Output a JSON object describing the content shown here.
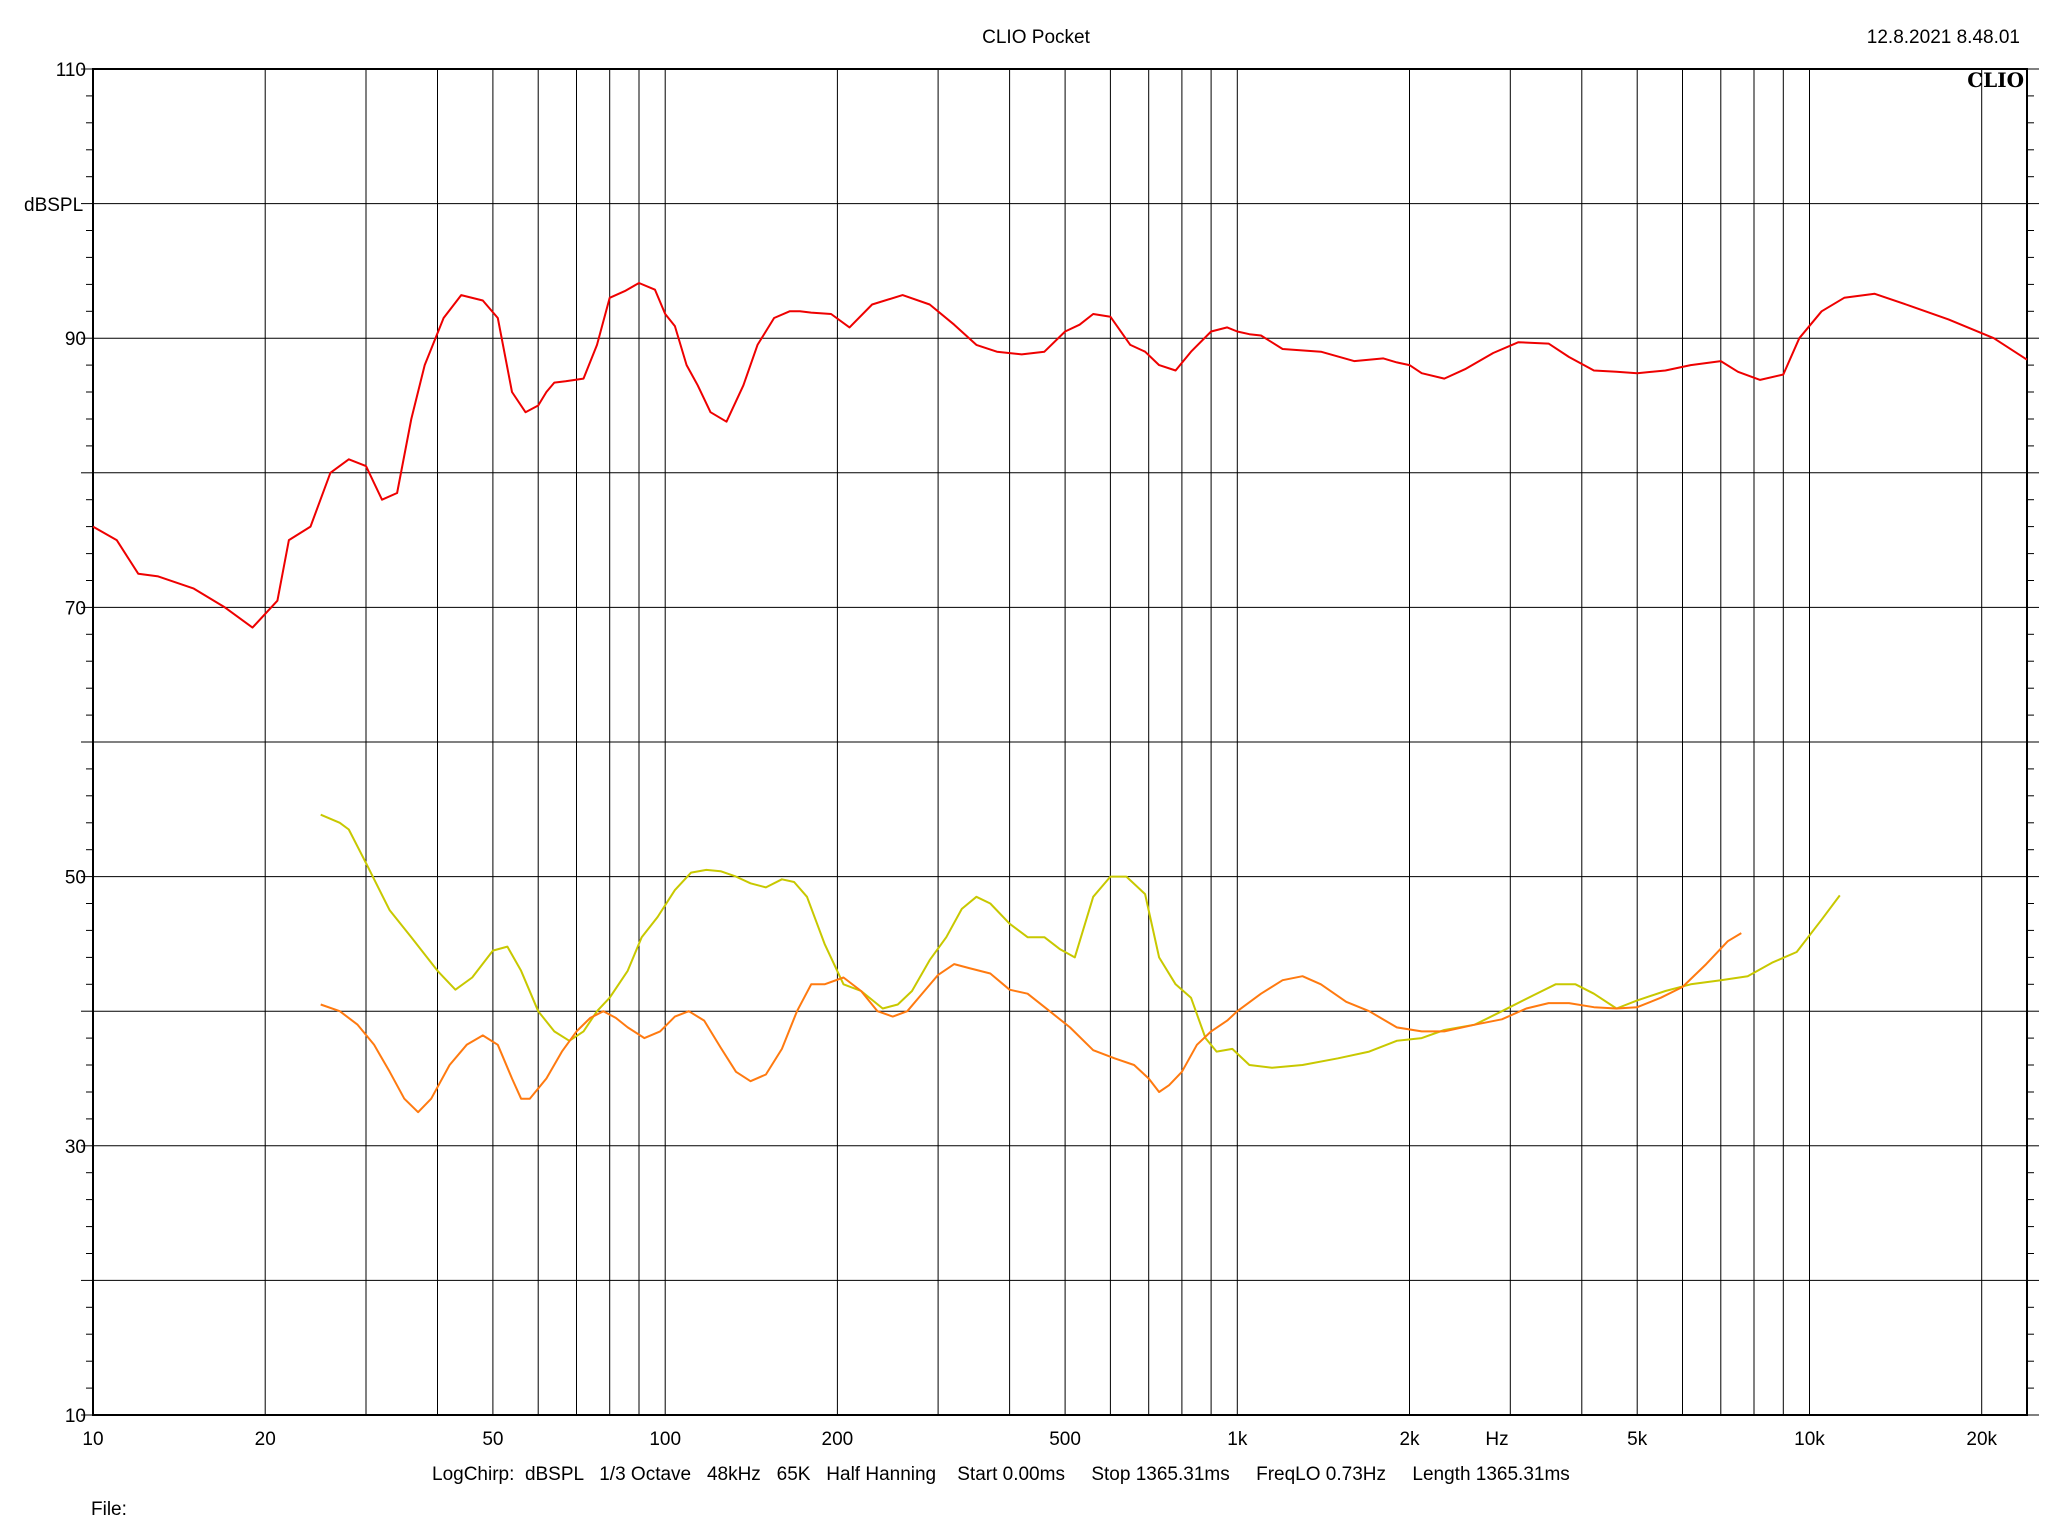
{
  "header": {
    "title": "CLIO Pocket",
    "timestamp": "12.8.2021 8.48.01",
    "brand": "CLIO"
  },
  "footer": {
    "settings": "LogChirp:  dBSPL   1/3 Octave   48kHz   65K   Half Hanning    Start 0.00ms     Stop 1365.31ms     FreqLO 0.73Hz     Length 1365.31ms",
    "file_label": "File:"
  },
  "chart_data": {
    "type": "line",
    "x_scale": "log",
    "xlim": [
      10,
      24000
    ],
    "ylim": [
      10,
      110
    ],
    "xlabel": "Hz",
    "ylabel": "dBSPL",
    "grid": true,
    "x_ticks": [
      {
        "value": 10,
        "label": "10"
      },
      {
        "value": 20,
        "label": "20"
      },
      {
        "value": 50,
        "label": "50"
      },
      {
        "value": 100,
        "label": "100"
      },
      {
        "value": 200,
        "label": "200"
      },
      {
        "value": 500,
        "label": "500"
      },
      {
        "value": 1000,
        "label": "1k"
      },
      {
        "value": 2000,
        "label": "2k"
      },
      {
        "value": 5000,
        "label": "5k"
      },
      {
        "value": 10000,
        "label": "10k"
      },
      {
        "value": 20000,
        "label": "20k"
      }
    ],
    "x_gridlines": [
      10,
      20,
      30,
      40,
      50,
      60,
      70,
      80,
      90,
      100,
      200,
      300,
      400,
      500,
      600,
      700,
      800,
      900,
      1000,
      2000,
      3000,
      4000,
      5000,
      6000,
      7000,
      8000,
      9000,
      10000,
      20000
    ],
    "y_ticks": [
      {
        "value": 10,
        "label": "10"
      },
      {
        "value": 30,
        "label": "30"
      },
      {
        "value": 50,
        "label": "50"
      },
      {
        "value": 70,
        "label": "70"
      },
      {
        "value": 90,
        "label": "90"
      },
      {
        "value": 110,
        "label": "110"
      }
    ],
    "y_gridlines": [
      10,
      20,
      30,
      40,
      50,
      60,
      70,
      80,
      90,
      100,
      110
    ],
    "series": [
      {
        "color": "#ee0000",
        "x": [
          10,
          11,
          12,
          13,
          15,
          17,
          19,
          21,
          22,
          24,
          26,
          28,
          30,
          32,
          34,
          36,
          38,
          41,
          44,
          48,
          51,
          54,
          57,
          60,
          62,
          64,
          67,
          72,
          76,
          80,
          85,
          90,
          96,
          100,
          104,
          109,
          114,
          120,
          128,
          137,
          145,
          155,
          165,
          172,
          180,
          195,
          210,
          230,
          260,
          290,
          320,
          350,
          380,
          420,
          460,
          500,
          530,
          560,
          600,
          650,
          690,
          730,
          780,
          830,
          900,
          960,
          1000,
          1050,
          1100,
          1200,
          1400,
          1600,
          1800,
          1900,
          2000,
          2100,
          2300,
          2500,
          2800,
          3100,
          3500,
          3800,
          4200,
          4600,
          5000,
          5600,
          6200,
          7000,
          7500,
          8200,
          9000,
          9600,
          10500,
          11500,
          13000,
          15000,
          17500,
          21000,
          24000
        ],
        "y": [
          76,
          75,
          72.5,
          72.3,
          71.4,
          70,
          68.5,
          70.5,
          75,
          76,
          80,
          81,
          80.5,
          78,
          78.5,
          84,
          88,
          91.5,
          93.2,
          92.8,
          91.5,
          86,
          84.5,
          85,
          86,
          86.7,
          86.8,
          87,
          89.5,
          93,
          93.5,
          94.1,
          93.6,
          91.8,
          90.9,
          88,
          86.5,
          84.5,
          83.8,
          86.5,
          89.5,
          91.5,
          92,
          92,
          91.9,
          91.8,
          90.8,
          92.5,
          93.2,
          92.5,
          91,
          89.5,
          89,
          88.8,
          89,
          90.5,
          91,
          91.8,
          91.6,
          89.5,
          89,
          88,
          87.6,
          89,
          90.5,
          90.8,
          90.5,
          90.3,
          90.2,
          89.2,
          89,
          88.3,
          88.5,
          88.2,
          88,
          87.4,
          87,
          87.7,
          88.9,
          89.7,
          89.6,
          88.6,
          87.6,
          87.5,
          87.4,
          87.6,
          88,
          88.3,
          87.5,
          86.9,
          87.3,
          90,
          92,
          93,
          93.3,
          92.4,
          91.4,
          90,
          88.4
        ]
      },
      {
        "color": "#c8c800",
        "x": [
          25,
          27,
          28,
          30,
          33,
          36,
          40,
          43,
          46,
          50,
          53,
          56,
          60,
          64,
          68,
          72,
          76,
          80,
          86,
          91,
          97,
          104,
          111,
          118,
          125,
          133,
          141,
          150,
          160,
          168,
          177,
          190,
          205,
          220,
          240,
          255,
          270,
          290,
          310,
          330,
          350,
          370,
          400,
          430,
          460,
          490,
          520,
          560,
          600,
          640,
          690,
          730,
          780,
          830,
          880,
          920,
          980,
          1050,
          1150,
          1300,
          1500,
          1700,
          1900,
          2100,
          2300,
          2600,
          2900,
          3300,
          3600,
          3900,
          4200,
          4600,
          5000,
          5600,
          6200,
          7000,
          7800,
          8600,
          9500,
          10500,
          11300
        ],
        "y": [
          54.6,
          54,
          53.5,
          51,
          47.5,
          45.5,
          43,
          41.6,
          42.5,
          44.5,
          44.8,
          43,
          40,
          38.5,
          37.8,
          38.5,
          40,
          41,
          43,
          45.5,
          47,
          49,
          50.3,
          50.5,
          50.4,
          50,
          49.5,
          49.2,
          49.8,
          49.6,
          48.5,
          45,
          42,
          41.5,
          40.2,
          40.5,
          41.5,
          43.8,
          45.5,
          47.6,
          48.5,
          48,
          46.5,
          45.5,
          45.5,
          44.6,
          44,
          48.5,
          50,
          50,
          48.7,
          44,
          42,
          41,
          38,
          37,
          37.2,
          36,
          35.8,
          36,
          36.5,
          37,
          37.8,
          38,
          38.6,
          39,
          40,
          41.2,
          42,
          42,
          41.3,
          40.2,
          40.8,
          41.5,
          42,
          42.3,
          42.6,
          43.6,
          44.4,
          46.8,
          48.6
        ]
      },
      {
        "color": "#ff7a10",
        "x": [
          25,
          27,
          29,
          31,
          33,
          35,
          37,
          39,
          42,
          45,
          48,
          51,
          54,
          56,
          58,
          62,
          66,
          70,
          74,
          78,
          82,
          86,
          92,
          98,
          104,
          110,
          117,
          125,
          133,
          141,
          150,
          160,
          170,
          180,
          190,
          205,
          220,
          235,
          250,
          265,
          280,
          300,
          320,
          340,
          370,
          400,
          430,
          470,
          510,
          560,
          610,
          660,
          700,
          730,
          760,
          800,
          850,
          900,
          960,
          1000,
          1100,
          1200,
          1300,
          1400,
          1550,
          1700,
          1900,
          2100,
          2300,
          2600,
          2900,
          3200,
          3500,
          3800,
          4200,
          4600,
          5000,
          5500,
          6000,
          6600,
          7200,
          7600
        ],
        "y": [
          40.5,
          40,
          39,
          37.5,
          35.5,
          33.5,
          32.5,
          33.5,
          36,
          37.5,
          38.2,
          37.5,
          35,
          33.5,
          33.5,
          35,
          37,
          38.5,
          39.5,
          40,
          39.5,
          38.8,
          38,
          38.5,
          39.6,
          40,
          39.3,
          37.3,
          35.5,
          34.8,
          35.3,
          37.2,
          40,
          42,
          42,
          42.5,
          41.5,
          40,
          39.6,
          40,
          41.2,
          42.7,
          43.5,
          43.2,
          42.8,
          41.6,
          41.3,
          40,
          38.8,
          37.1,
          36.5,
          36,
          35,
          34,
          34.5,
          35.5,
          37.5,
          38.5,
          39.3,
          40,
          41.3,
          42.3,
          42.6,
          42,
          40.7,
          40,
          38.8,
          38.5,
          38.5,
          39,
          39.4,
          40.2,
          40.6,
          40.6,
          40.3,
          40.2,
          40.3,
          41,
          41.8,
          43.5,
          45.2,
          45.8
        ]
      }
    ]
  }
}
